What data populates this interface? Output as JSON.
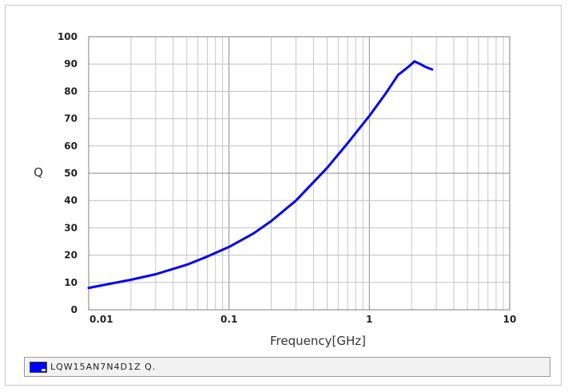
{
  "chart_data": {
    "type": "line",
    "xlabel": "Frequency[GHz]",
    "ylabel": "Q",
    "xscale": "log",
    "xlim": [
      0.01,
      10
    ],
    "ylim": [
      0,
      100
    ],
    "x_ticks": [
      0.01,
      0.1,
      1,
      10
    ],
    "x_tick_labels": [
      "0.01",
      "0.1",
      "1",
      "10"
    ],
    "y_ticks": [
      0,
      10,
      20,
      30,
      40,
      50,
      60,
      70,
      80,
      90,
      100
    ],
    "y_tick_labels": [
      "0",
      "10",
      "20",
      "30",
      "40",
      "50",
      "60",
      "70",
      "80",
      "90",
      "100"
    ],
    "grid": true,
    "legend_placement": "bottom",
    "series": [
      {
        "name": "LQW15AN7N4D1Z Q.",
        "color": "#0000ff",
        "x": [
          0.01,
          0.02,
          0.03,
          0.05,
          0.07,
          0.1,
          0.15,
          0.2,
          0.3,
          0.5,
          0.7,
          1.0,
          1.3,
          1.6,
          1.9,
          2.1,
          2.3,
          2.5,
          2.8
        ],
        "y": [
          8,
          11,
          13,
          16.5,
          19.5,
          23,
          28,
          32.5,
          40,
          52,
          61,
          71,
          79,
          86,
          89,
          91,
          90,
          89,
          88
        ]
      }
    ]
  }
}
